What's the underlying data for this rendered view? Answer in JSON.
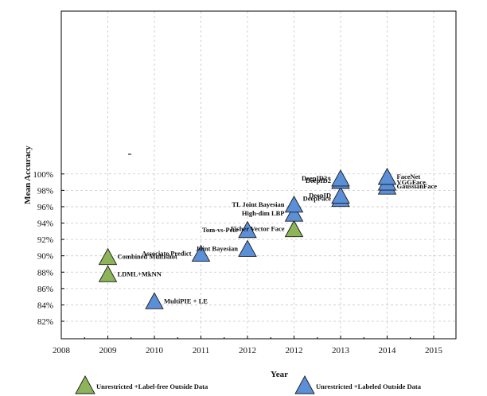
{
  "chart_data": {
    "type": "scatter",
    "title": "",
    "xlabel": "Year",
    "ylabel": "Mean Accuracy",
    "xlim": [
      2008,
      2015.5
    ],
    "ylim": [
      81,
      101.2
    ],
    "x_tick_labels": [
      "2008",
      "2009",
      "2010",
      "2011",
      "2012",
      "2012",
      "2013",
      "2014",
      "2015"
    ],
    "y_ticks": [
      82,
      84,
      86,
      88,
      90,
      92,
      94,
      96,
      98,
      100
    ],
    "y_tick_labels": [
      "82%",
      "84%",
      "86%",
      "88%",
      "90%",
      "92%",
      "94%",
      "96%",
      "98%",
      "100%"
    ],
    "grid": true,
    "legend_position": "bottom",
    "series": [
      {
        "name": "Unrestricted +Label-free Outside Data",
        "color": "#8db458",
        "marker": "triangle",
        "points": [
          {
            "x": 2009.0,
            "y": 89.9,
            "label": "Combined Multishot",
            "label_side": "right"
          },
          {
            "x": 2009.0,
            "y": 87.8,
            "label": "LDML+MkNN",
            "label_side": "right"
          },
          {
            "x": 2013.0,
            "y": 93.3,
            "label": "Fisher Vector Face",
            "label_side": "left"
          }
        ]
      },
      {
        "name": "Unrestricted +Labeled Outside Data",
        "color": "#5b8fd8",
        "marker": "triangle",
        "points": [
          {
            "x": 2010.0,
            "y": 84.5,
            "label": "MultiPIE + LE",
            "label_side": "right"
          },
          {
            "x": 2011.0,
            "y": 90.3,
            "label": "Associate Predict",
            "label_side": "left"
          },
          {
            "x": 2012.0,
            "y": 90.9,
            "label": "Joint Bayesian",
            "label_side": "left"
          },
          {
            "x": 2012.0,
            "y": 93.2,
            "label": "Tom-vs-Pete",
            "label_side": "left"
          },
          {
            "x": 2013.0,
            "y": 95.2,
            "label": "High-dim LBP",
            "label_side": "left"
          },
          {
            "x": 2013.0,
            "y": 96.3,
            "label": "TL Joint Bayesian",
            "label_side": "left"
          },
          {
            "x": 2014.0,
            "y": 97.0,
            "label": "DeepFace",
            "label_side": "left"
          },
          {
            "x": 2014.0,
            "y": 97.4,
            "label": "DeepID",
            "label_side": "left"
          },
          {
            "x": 2014.0,
            "y": 99.2,
            "label": "DeepID2",
            "label_side": "left"
          },
          {
            "x": 2014.0,
            "y": 99.5,
            "label": "DeepID2+",
            "label_side": "left"
          },
          {
            "x": 2015.0,
            "y": 98.5,
            "label": "GaussianFace",
            "label_side": "right"
          },
          {
            "x": 2015.0,
            "y": 99.0,
            "label": "VGGFace",
            "label_side": "right"
          },
          {
            "x": 2015.0,
            "y": 99.7,
            "label": "FaceNet",
            "label_side": "right"
          }
        ]
      }
    ]
  }
}
